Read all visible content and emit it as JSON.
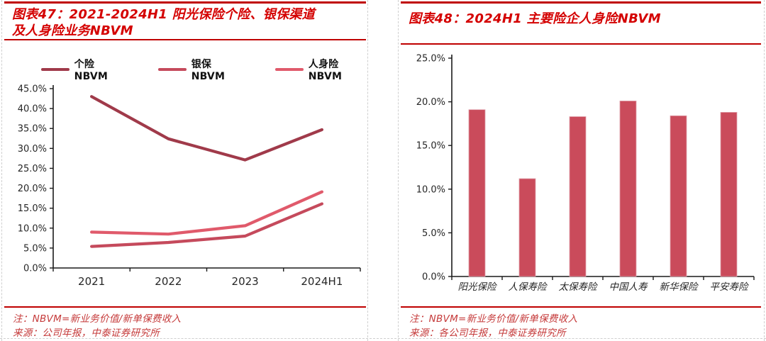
{
  "colors": {
    "title_red": "#d40000",
    "rule_red": "#bf0000",
    "note_red": "#c53a3a",
    "axis": "#1a1a1a",
    "tick_label": "#262626",
    "guide_gray": "#cfcfcf",
    "bar_fill": "#ca4b5b",
    "bar_edge": "#e0a3ad"
  },
  "panels": [
    {
      "figure_label": "图表47",
      "title_line1": "图表47：2021-2024H1 阳光保险个险、银保渠道",
      "title_line2": "及人身险业务NBVM",
      "note": "注：NBVM=新业务价值/新单保费收入",
      "source": "来源：公司年报，中泰证券研究所"
    },
    {
      "figure_label": "图表48",
      "title_line1": "图表48：2024H1 主要险企人身险NBVM",
      "title_line2": "",
      "note": "注：NBVM=新业务价值/新单保费收入",
      "source": "来源：各公司年报，中泰证券研究所"
    }
  ],
  "chart_data": [
    {
      "type": "line",
      "title": "2021-2024H1 阳光保险个险、银保渠道及人身险业务NBVM",
      "categories": [
        "2021",
        "2022",
        "2023",
        "2024H1"
      ],
      "series": [
        {
          "name": "个险NBVM",
          "color": "#a03a4a",
          "values": [
            43.0,
            32.4,
            27.1,
            34.7
          ]
        },
        {
          "name": "银保NBVM",
          "color": "#c54a5c",
          "values": [
            5.4,
            6.4,
            8.0,
            16.1
          ]
        },
        {
          "name": "人身险NBVM",
          "color": "#e05a6b",
          "values": [
            9.0,
            8.5,
            10.6,
            19.1
          ]
        }
      ],
      "xlabel": "",
      "ylabel": "",
      "ylim": [
        0,
        45
      ],
      "ytick_step": 5,
      "ytick_labels": [
        "0.0%",
        "5.0%",
        "10.0%",
        "15.0%",
        "20.0%",
        "25.0%",
        "30.0%",
        "35.0%",
        "40.0%",
        "45.0%"
      ],
      "legend_position": "top",
      "grid": false
    },
    {
      "type": "bar",
      "title": "2024H1 主要险企人身险NBVM",
      "categories": [
        "阳光保险",
        "人保寿险",
        "太保寿险",
        "中国人寿",
        "新华保险",
        "平安寿险"
      ],
      "values": [
        19.1,
        11.2,
        18.3,
        20.1,
        18.4,
        18.8
      ],
      "xlabel": "",
      "ylabel": "",
      "ylim": [
        0,
        25
      ],
      "ytick_step": 5,
      "ytick_labels": [
        "0.0%",
        "5.0%",
        "10.0%",
        "15.0%",
        "20.0%",
        "25.0%"
      ],
      "legend_position": "none",
      "grid": false
    }
  ]
}
